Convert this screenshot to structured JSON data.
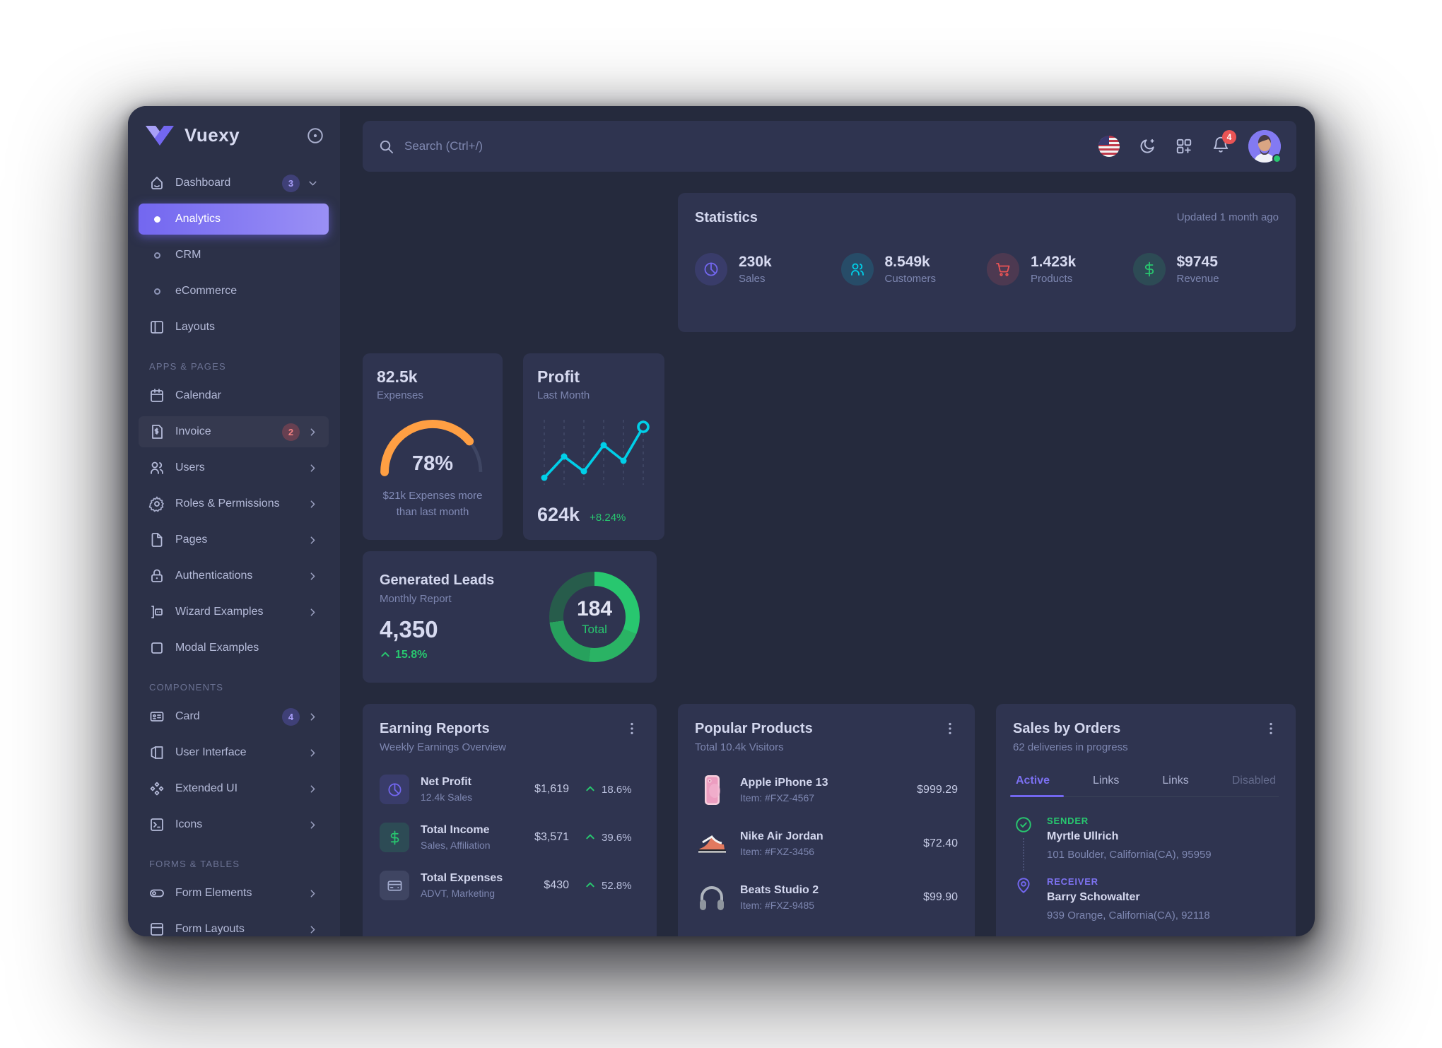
{
  "colors": {
    "accent": "#7367f0",
    "success": "#28c76f",
    "danger": "#ea5455",
    "warning": "#ff9f43",
    "info": "#00cfe8"
  },
  "sidebar": {
    "brand": "Vuexy",
    "dashboard": {
      "label": "Dashboard",
      "badge": "3"
    },
    "dashboard_children": [
      "Analytics",
      "CRM",
      "eCommerce"
    ],
    "layouts_label": "Layouts",
    "sections": {
      "apps": "APPS & PAGES",
      "components": "COMPONENTS",
      "forms": "FORMS & TABLES"
    },
    "apps_items": [
      {
        "label": "Calendar"
      },
      {
        "label": "Invoice",
        "badge": "2"
      },
      {
        "label": "Users"
      },
      {
        "label": "Roles & Permissions"
      },
      {
        "label": "Pages"
      },
      {
        "label": "Authentications"
      },
      {
        "label": "Wizard Examples"
      },
      {
        "label": "Modal Examples"
      }
    ],
    "components_items": [
      {
        "label": "Card",
        "badge": "4"
      },
      {
        "label": "User Interface"
      },
      {
        "label": "Extended UI"
      },
      {
        "label": "Icons"
      }
    ],
    "forms_items": [
      {
        "label": "Form Elements"
      },
      {
        "label": "Form Layouts"
      }
    ]
  },
  "navbar": {
    "search_placeholder": "Search (Ctrl+/)",
    "notification_count": "4"
  },
  "stats": {
    "title": "Statistics",
    "updated": "Updated 1 month ago",
    "items": [
      {
        "value": "230k",
        "label": "Sales"
      },
      {
        "value": "8.549k",
        "label": "Customers"
      },
      {
        "value": "1.423k",
        "label": "Products"
      },
      {
        "value": "$9745",
        "label": "Revenue"
      }
    ]
  },
  "expenses": {
    "value": "82.5k",
    "label": "Expenses",
    "percent_text": "78%",
    "gauge_percent": 78,
    "note_line1": "$21k Expenses more",
    "note_line2": "than last month"
  },
  "profit": {
    "title": "Profit",
    "subtitle": "Last Month",
    "value": "624k",
    "change": "+8.24%",
    "chart": {
      "type": "line",
      "points_y": [
        86,
        56,
        77,
        40,
        62,
        14
      ],
      "color": "#00cfe8"
    }
  },
  "leads": {
    "title": "Generated Leads",
    "subtitle": "Monthly Report",
    "value": "4,350",
    "change": "15.8%",
    "total_value": "184",
    "total_label": "Total",
    "chart": {
      "type": "donut",
      "segments": [
        {
          "deg": 112,
          "color": "#28c76f"
        },
        {
          "deg": 75,
          "color": "#2ab364"
        },
        {
          "deg": 76,
          "color": "#27a15d"
        },
        {
          "deg": 97,
          "color": "#275c4b"
        }
      ]
    }
  },
  "earning": {
    "title": "Earning Reports",
    "subtitle": "Weekly Earnings Overview",
    "rows": [
      {
        "name": "Net Profit",
        "sub": "12.4k Sales",
        "value": "$1,619",
        "pct": "18.6%"
      },
      {
        "name": "Total Income",
        "sub": "Sales, Affiliation",
        "value": "$3,571",
        "pct": "39.6%"
      },
      {
        "name": "Total Expenses",
        "sub": "ADVT, Marketing",
        "value": "$430",
        "pct": "52.8%"
      }
    ]
  },
  "products": {
    "title": "Popular Products",
    "subtitle": "Total 10.4k Visitors",
    "rows": [
      {
        "name": "Apple iPhone 13",
        "item": "Item: #FXZ-4567",
        "price": "$999.29"
      },
      {
        "name": "Nike Air Jordan",
        "item": "Item: #FXZ-3456",
        "price": "$72.40"
      },
      {
        "name": "Beats Studio 2",
        "item": "Item: #FXZ-9485",
        "price": "$99.90"
      }
    ]
  },
  "orders": {
    "title": "Sales by Orders",
    "subtitle": "62 deliveries in progress",
    "tabs": [
      "Active",
      "Links",
      "Links",
      "Disabled"
    ],
    "sender_label": "SENDER",
    "sender_name": "Myrtle Ullrich",
    "sender_address": "101 Boulder, California(CA), 95959",
    "receiver_label": "RECEIVER",
    "receiver_name": "Barry Schowalter",
    "receiver_address": "939 Orange, California(CA), 92118"
  }
}
